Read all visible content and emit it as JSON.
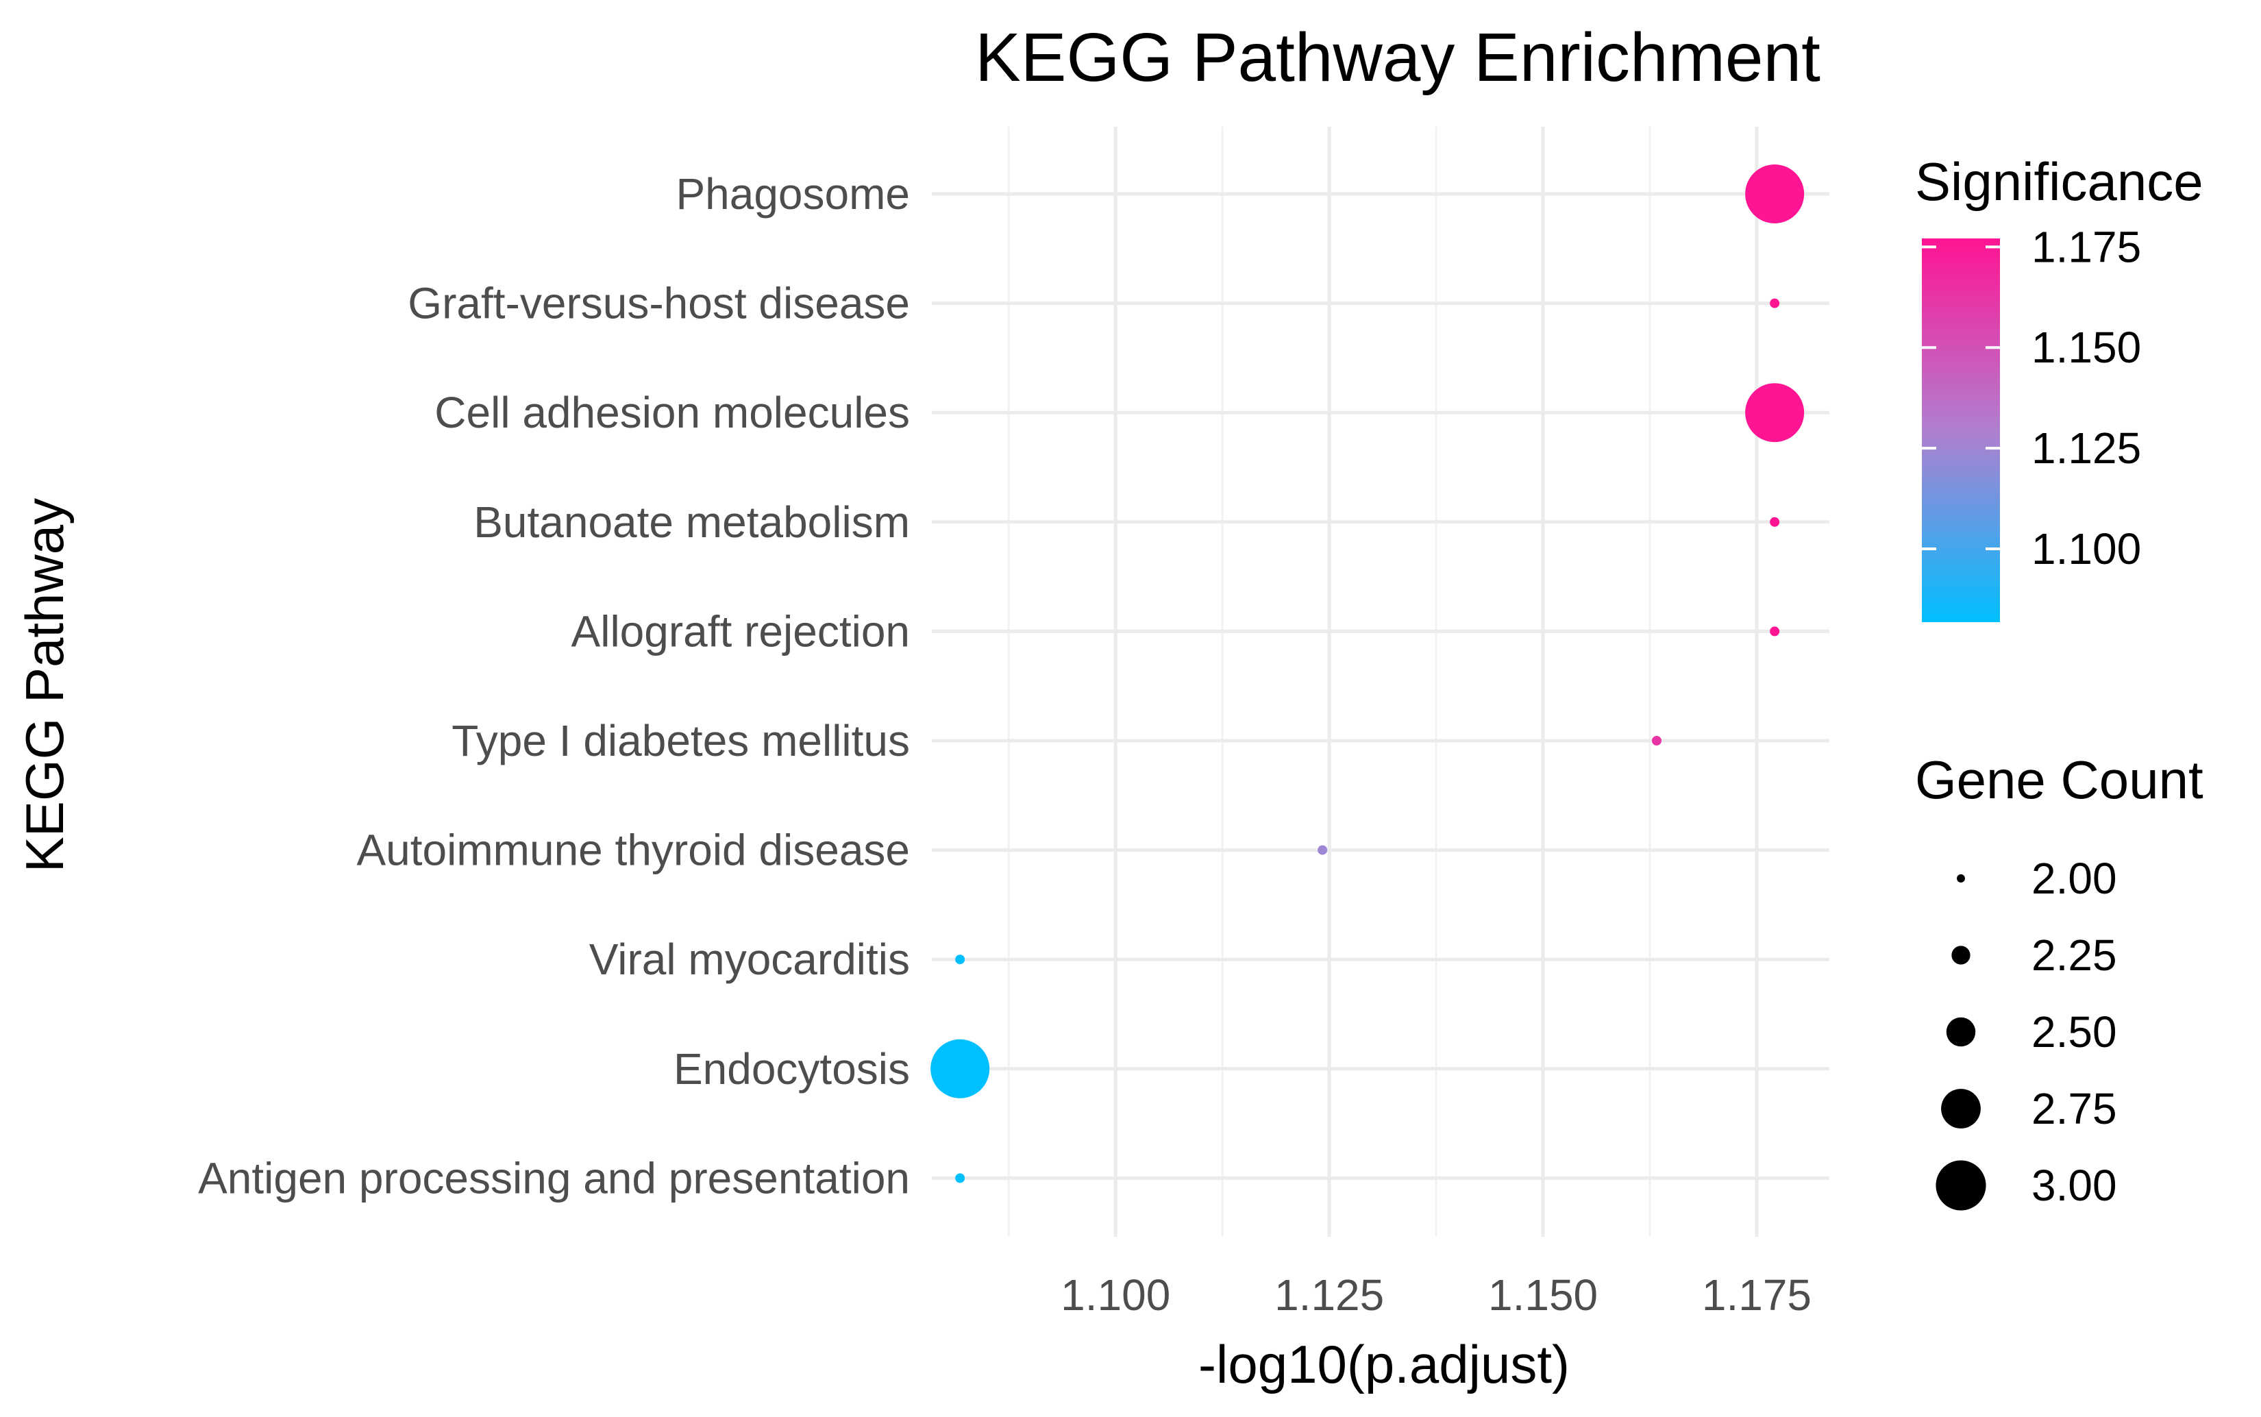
{
  "chart_data": {
    "type": "scatter",
    "title": "KEGG Pathway Enrichment",
    "xlabel": "-log10(p.adjust)",
    "ylabel": "KEGG Pathway",
    "xlim": [
      1.0785,
      1.1835
    ],
    "x_ticks": [
      1.1,
      1.125,
      1.15,
      1.175
    ],
    "x_tick_labels": [
      "1.100",
      "1.125",
      "1.150",
      "1.175"
    ],
    "grid": true,
    "categories": [
      "Phagosome",
      "Graft-versus-host disease",
      "Cell adhesion molecules",
      "Butanoate metabolism",
      "Allograft rejection",
      "Type I diabetes mellitus",
      "Autoimmune thyroid disease",
      "Viral myocarditis",
      "Endocytosis",
      "Antigen processing and presentation"
    ],
    "points": [
      {
        "pathway": "Phagosome",
        "x": 1.1771,
        "gene_count": 3
      },
      {
        "pathway": "Graft-versus-host disease",
        "x": 1.1771,
        "gene_count": 2
      },
      {
        "pathway": "Cell adhesion molecules",
        "x": 1.1771,
        "gene_count": 3
      },
      {
        "pathway": "Butanoate metabolism",
        "x": 1.1771,
        "gene_count": 2
      },
      {
        "pathway": "Allograft rejection",
        "x": 1.1771,
        "gene_count": 2
      },
      {
        "pathway": "Type I diabetes mellitus",
        "x": 1.1633,
        "gene_count": 2
      },
      {
        "pathway": "Autoimmune thyroid disease",
        "x": 1.1242,
        "gene_count": 2
      },
      {
        "pathway": "Viral myocarditis",
        "x": 1.0818,
        "gene_count": 2
      },
      {
        "pathway": "Endocytosis",
        "x": 1.0818,
        "gene_count": 3
      },
      {
        "pathway": "Antigen processing and presentation",
        "x": 1.0818,
        "gene_count": 2
      }
    ],
    "color_legend": {
      "title": "Significance",
      "range": [
        1.0818,
        1.1771
      ],
      "low_color": "#00bfff",
      "mid_color": "#b07fcf",
      "high_color": "#ff1493",
      "ticks": [
        1.1,
        1.125,
        1.15,
        1.175
      ],
      "tick_labels": [
        "1.100",
        "1.125",
        "1.150",
        "1.175"
      ]
    },
    "size_legend": {
      "title": "Gene Count",
      "range": [
        2,
        3
      ],
      "values": [
        2.0,
        2.25,
        2.5,
        2.75,
        3.0
      ],
      "labels": [
        "2.00",
        "2.25",
        "2.50",
        "2.75",
        "3.00"
      ]
    },
    "legend_position": "right"
  }
}
